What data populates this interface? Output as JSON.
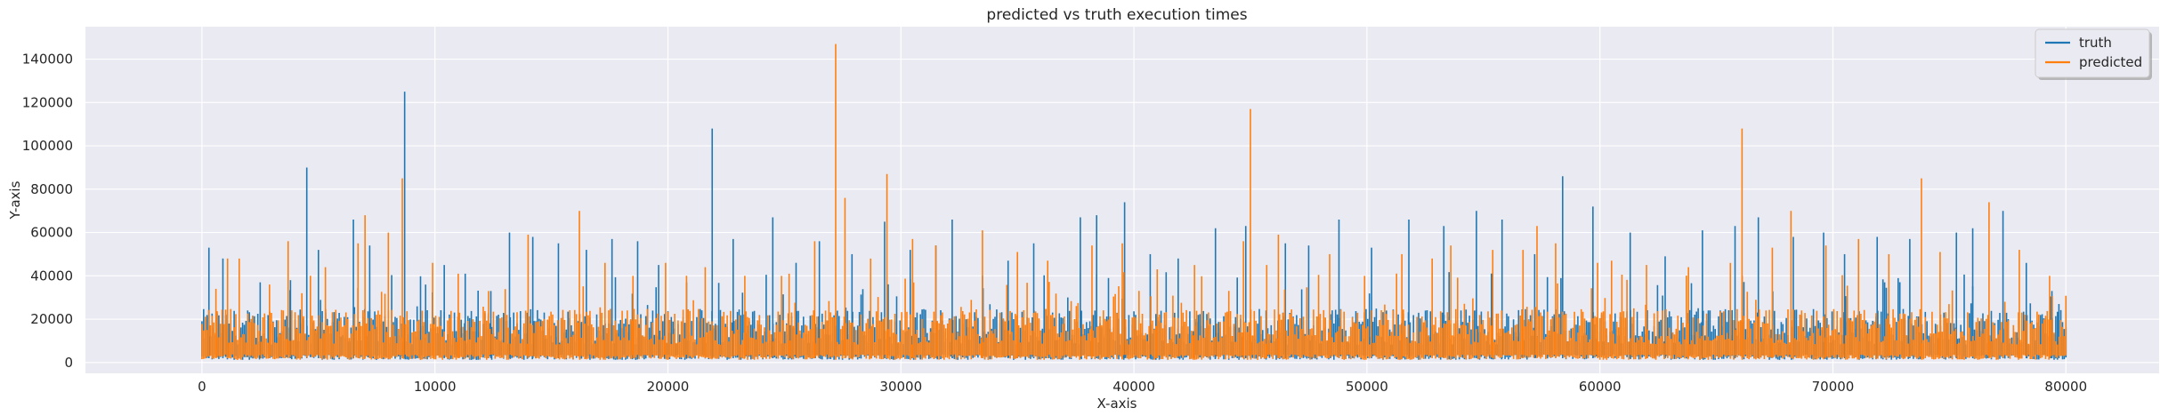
{
  "chart_data": {
    "type": "line",
    "title": "predicted vs truth execution times",
    "xlabel": "X-axis",
    "ylabel": "Y-axis",
    "xlim": [
      -5000,
      84000
    ],
    "ylim": [
      -5000,
      155000
    ],
    "xticks": [
      0,
      10000,
      20000,
      30000,
      40000,
      50000,
      60000,
      70000,
      80000
    ],
    "yticks": [
      0,
      20000,
      40000,
      60000,
      80000,
      100000,
      120000,
      140000
    ],
    "grid": true,
    "legend_position": "top-right",
    "baseline": 15000,
    "series": [
      {
        "name": "truth",
        "color": "#1f77b4",
        "spikes": [
          [
            300,
            53000
          ],
          [
            900,
            48000
          ],
          [
            2500,
            37000
          ],
          [
            3800,
            38000
          ],
          [
            4500,
            90000
          ],
          [
            5000,
            52000
          ],
          [
            6500,
            66000
          ],
          [
            7200,
            54000
          ],
          [
            8700,
            125000
          ],
          [
            9600,
            36000
          ],
          [
            10400,
            45000
          ],
          [
            11300,
            41000
          ],
          [
            12400,
            33000
          ],
          [
            13200,
            60000
          ],
          [
            14200,
            58000
          ],
          [
            15300,
            55000
          ],
          [
            16500,
            52000
          ],
          [
            17600,
            57000
          ],
          [
            18700,
            56000
          ],
          [
            19600,
            45000
          ],
          [
            20800,
            37000
          ],
          [
            21900,
            108000
          ],
          [
            22800,
            57000
          ],
          [
            24500,
            67000
          ],
          [
            25500,
            46000
          ],
          [
            26500,
            56000
          ],
          [
            27900,
            50000
          ],
          [
            29300,
            65000
          ],
          [
            30400,
            52000
          ],
          [
            31500,
            54000
          ],
          [
            32200,
            66000
          ],
          [
            33500,
            40000
          ],
          [
            34600,
            47000
          ],
          [
            35700,
            55000
          ],
          [
            37700,
            67000
          ],
          [
            38400,
            68000
          ],
          [
            39600,
            74000
          ],
          [
            40700,
            50000
          ],
          [
            41900,
            48000
          ],
          [
            43500,
            62000
          ],
          [
            44800,
            63000
          ],
          [
            46500,
            55000
          ],
          [
            47500,
            54000
          ],
          [
            48800,
            66000
          ],
          [
            50200,
            53000
          ],
          [
            51800,
            66000
          ],
          [
            53300,
            63000
          ],
          [
            54700,
            70000
          ],
          [
            55800,
            66000
          ],
          [
            57200,
            50000
          ],
          [
            58400,
            86000
          ],
          [
            59700,
            72000
          ],
          [
            61300,
            60000
          ],
          [
            62800,
            49000
          ],
          [
            64400,
            61000
          ],
          [
            65800,
            63000
          ],
          [
            66800,
            67000
          ],
          [
            68300,
            58000
          ],
          [
            69600,
            60000
          ],
          [
            70500,
            50000
          ],
          [
            71900,
            58000
          ],
          [
            73300,
            57000
          ],
          [
            75300,
            60000
          ],
          [
            76000,
            62000
          ],
          [
            77300,
            70000
          ],
          [
            78300,
            46000
          ],
          [
            79400,
            33000
          ],
          [
            79700,
            27000
          ]
        ]
      },
      {
        "name": "predicted",
        "color": "#ff7f0e",
        "spikes": [
          [
            600,
            34000
          ],
          [
            1100,
            48000
          ],
          [
            1600,
            48000
          ],
          [
            2900,
            36000
          ],
          [
            3700,
            56000
          ],
          [
            5300,
            44000
          ],
          [
            6700,
            55000
          ],
          [
            7000,
            68000
          ],
          [
            8000,
            60000
          ],
          [
            8600,
            85000
          ],
          [
            9900,
            46000
          ],
          [
            11000,
            41000
          ],
          [
            12300,
            33000
          ],
          [
            14000,
            59000
          ],
          [
            16200,
            70000
          ],
          [
            17300,
            46000
          ],
          [
            18500,
            40000
          ],
          [
            19900,
            46000
          ],
          [
            21600,
            44000
          ],
          [
            23300,
            40000
          ],
          [
            25200,
            41000
          ],
          [
            26300,
            56000
          ],
          [
            27200,
            147000
          ],
          [
            27600,
            76000
          ],
          [
            28700,
            48000
          ],
          [
            29400,
            87000
          ],
          [
            30500,
            57000
          ],
          [
            31500,
            54000
          ],
          [
            33500,
            61000
          ],
          [
            35000,
            51000
          ],
          [
            36300,
            47000
          ],
          [
            38200,
            54000
          ],
          [
            39500,
            55000
          ],
          [
            41000,
            43000
          ],
          [
            42600,
            45000
          ],
          [
            44700,
            56000
          ],
          [
            45000,
            117000
          ],
          [
            45700,
            45000
          ],
          [
            46200,
            59000
          ],
          [
            48400,
            50000
          ],
          [
            49900,
            40000
          ],
          [
            51500,
            50000
          ],
          [
            52800,
            48000
          ],
          [
            53600,
            54000
          ],
          [
            55400,
            52000
          ],
          [
            56700,
            52000
          ],
          [
            57300,
            63000
          ],
          [
            58100,
            55000
          ],
          [
            59900,
            46000
          ],
          [
            60500,
            47000
          ],
          [
            62000,
            45000
          ],
          [
            63800,
            44000
          ],
          [
            65600,
            46000
          ],
          [
            66100,
            108000
          ],
          [
            67400,
            53000
          ],
          [
            68200,
            70000
          ],
          [
            69700,
            54000
          ],
          [
            71100,
            57000
          ],
          [
            72400,
            50000
          ],
          [
            73800,
            85000
          ],
          [
            74600,
            51000
          ],
          [
            76700,
            74000
          ],
          [
            78000,
            52000
          ],
          [
            79300,
            40000
          ]
        ]
      }
    ]
  }
}
